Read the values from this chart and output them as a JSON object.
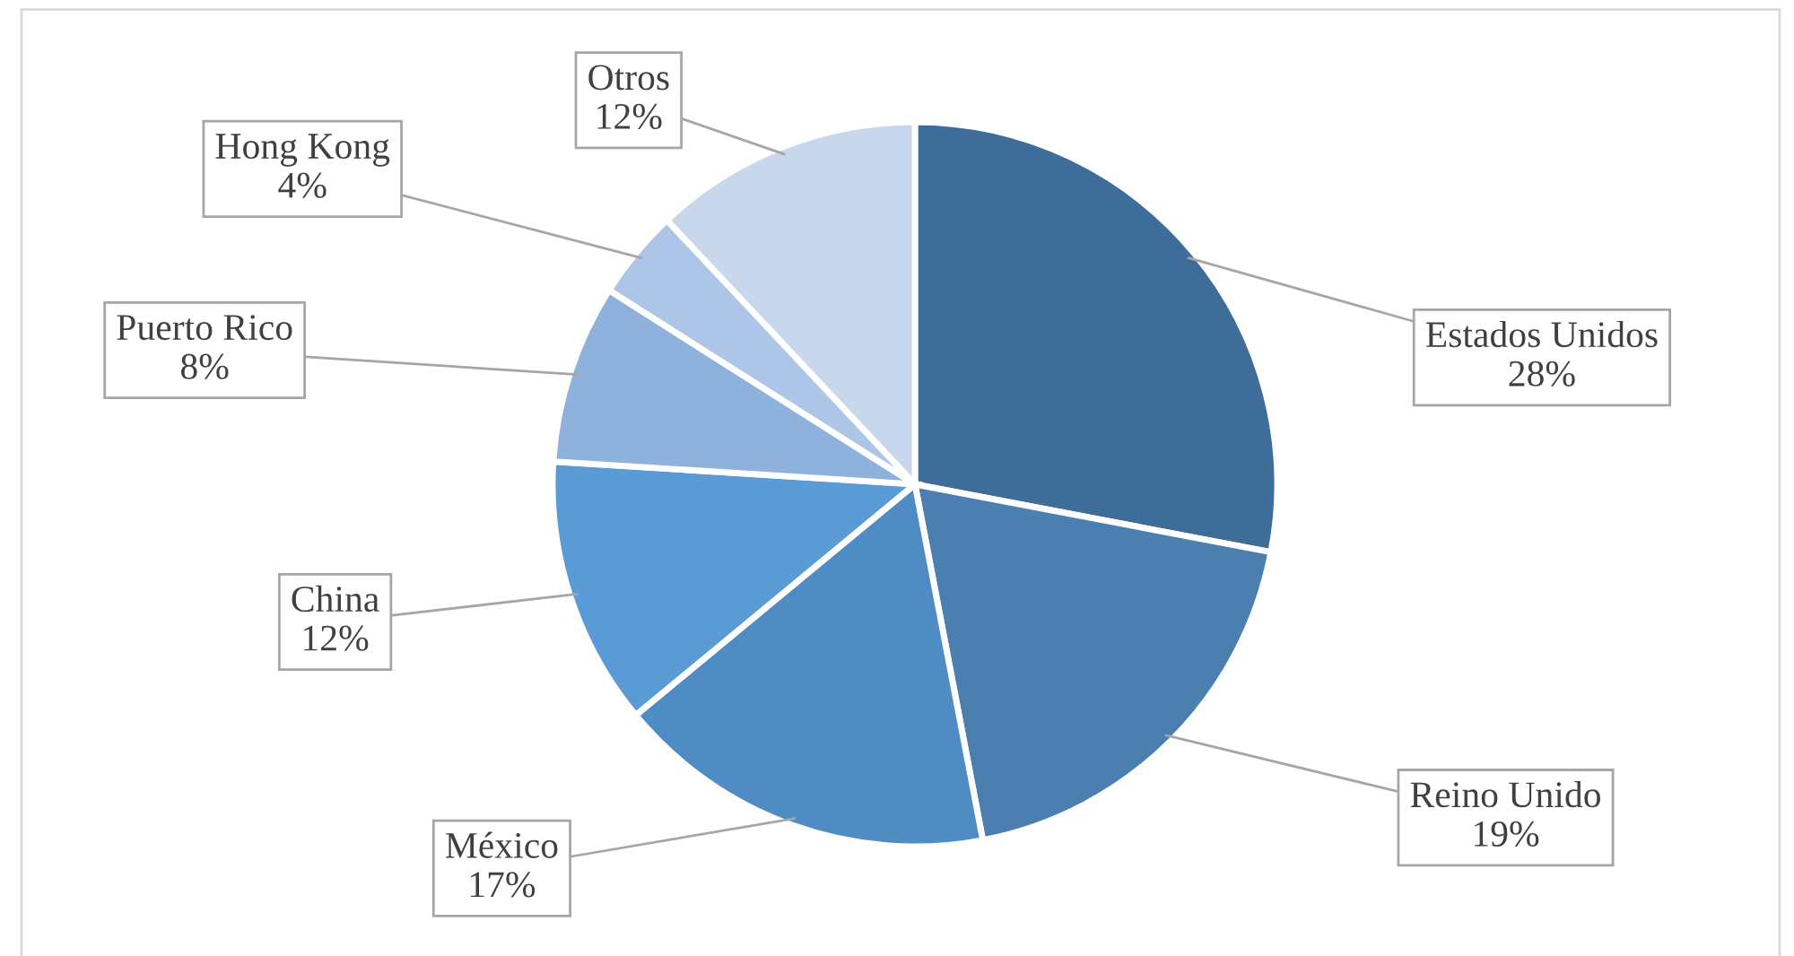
{
  "chart_data": {
    "type": "pie",
    "categories": [
      "Estados Unidos",
      "Reino Unido",
      "México",
      "China",
      "Puerto Rico",
      "Hong Kong",
      "Otros"
    ],
    "values": [
      28,
      19,
      17,
      12,
      8,
      4,
      12
    ],
    "colors": [
      "#3f6d99",
      "#4a7fb0",
      "#4f8cc4",
      "#5b9bd5",
      "#8fb2dd",
      "#adc5e7",
      "#c8d7ec"
    ],
    "value_labels": [
      "28%",
      "19%",
      "17%",
      "12%",
      "8%",
      "4%",
      "12%"
    ],
    "legend": false
  }
}
